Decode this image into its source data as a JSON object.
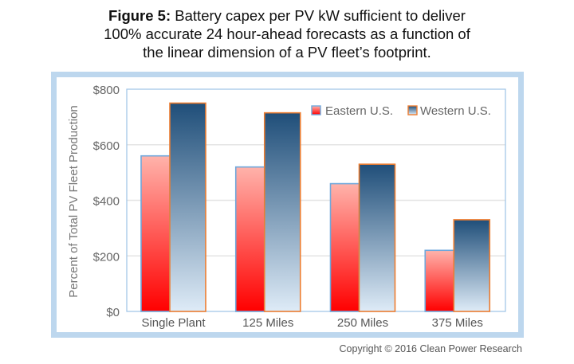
{
  "title": {
    "bold": "Figure 5:",
    "line1_rest": " Battery capex per PV kW sufficient to deliver",
    "line2": "100% accurate 24 hour-ahead forecasts as a function of",
    "line3": "the linear dimension of a PV fleet’s footprint."
  },
  "copyright": "Copyright © 2016 Clean Power Research",
  "chart_data": {
    "type": "bar",
    "title": "Figure 5: Battery capex per PV kW sufficient to deliver 100% accurate 24 hour-ahead forecasts as a function of the linear dimension of a PV fleet’s footprint.",
    "xlabel": "",
    "ylabel": "Percent of Total PV Fleet Production",
    "categories": [
      "Single Plant",
      "125 Miles",
      "250 Miles",
      "375 Miles"
    ],
    "series": [
      {
        "name": "Eastern U.S.",
        "values": [
          560,
          520,
          460,
          220
        ],
        "color_top": "#ffb3ab",
        "color_bottom": "#ff0000",
        "border": "#6fa8dc"
      },
      {
        "name": "Western U.S.",
        "values": [
          750,
          715,
          530,
          330
        ],
        "color_top": "#1f4e79",
        "color_bottom": "#deebf7",
        "border": "#ed7d31"
      }
    ],
    "ylim": [
      0,
      800
    ],
    "yticks": [
      0,
      200,
      400,
      600,
      800
    ],
    "ytick_labels": [
      "$0",
      "$200",
      "$400",
      "$600",
      "$800"
    ],
    "grid": true,
    "legend_position": "top-right"
  }
}
